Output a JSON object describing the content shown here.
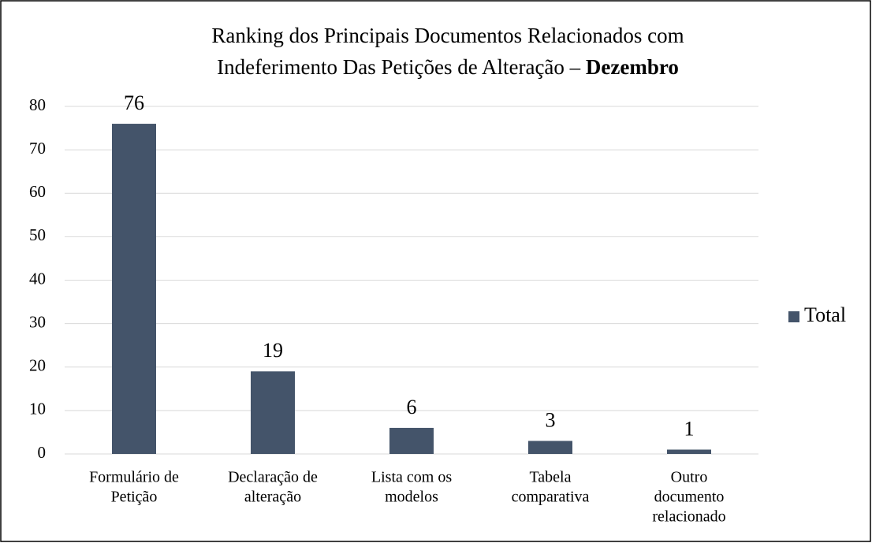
{
  "chart_data": {
    "type": "bar",
    "title": {
      "line1": "Ranking dos Principais Documentos Relacionados com",
      "line2": "Indeferimento Das Petições de Alteração –",
      "bold": "Dezembro"
    },
    "categories": [
      [
        "Formulário de",
        "Petição"
      ],
      [
        "Declaração de",
        "alteração"
      ],
      [
        "Lista com os",
        "modelos"
      ],
      [
        "Tabela",
        "comparativa"
      ],
      [
        "Outro",
        "documento",
        "relacionado"
      ]
    ],
    "series": [
      {
        "name": "Total",
        "color": "#44546a",
        "values": [
          76,
          19,
          6,
          3,
          1
        ]
      }
    ],
    "ylim": [
      0,
      80
    ],
    "yticks": [
      0,
      10,
      20,
      30,
      40,
      50,
      60,
      70,
      80
    ],
    "grid": true,
    "data_labels": true,
    "legend": "right"
  }
}
